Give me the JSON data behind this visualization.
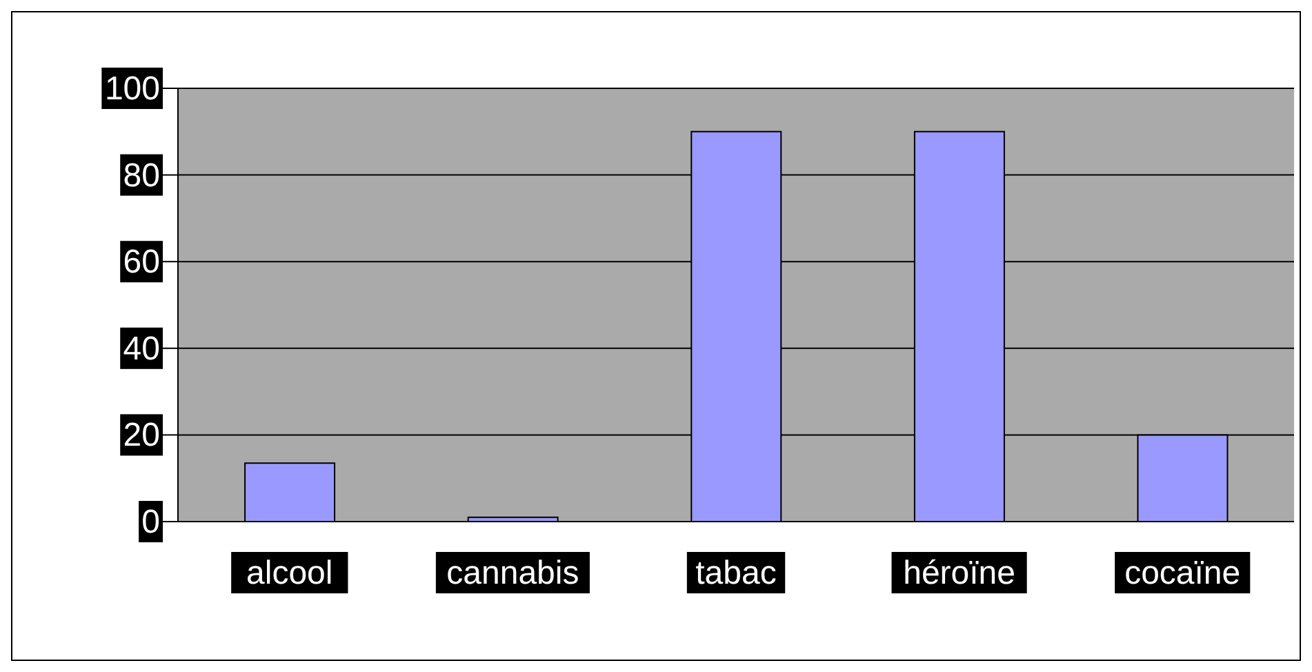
{
  "chart_data": {
    "type": "bar",
    "categories": [
      "alcool",
      "cannabis",
      "tabac",
      "héroïne",
      "cocaïne"
    ],
    "values": [
      13.5,
      1,
      90,
      90,
      20
    ],
    "color": "#9999ff",
    "ylim": [
      0,
      100
    ],
    "yticks": [
      0,
      20,
      40,
      60,
      80,
      100
    ],
    "grid": "y"
  }
}
